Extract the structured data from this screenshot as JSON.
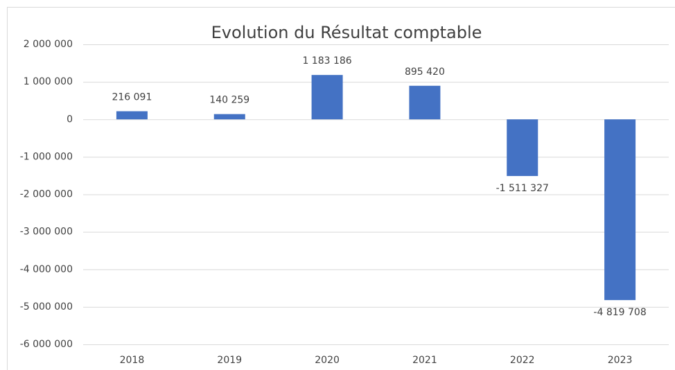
{
  "chart_data": {
    "type": "bar",
    "title": "Evolution du Résultat comptable",
    "categories": [
      "2018",
      "2019",
      "2020",
      "2021",
      "2022",
      "2023"
    ],
    "values": [
      216091,
      140259,
      1183186,
      895420,
      -1511327,
      -4819708
    ],
    "value_labels": [
      "216 091",
      "140 259",
      "1 183 186",
      "895 420",
      "-1 511 327",
      "-4 819 708"
    ],
    "color": "#4472c4",
    "ylim": [
      -6000000,
      2000000
    ],
    "yticks": [
      {
        "value": -6000000,
        "label": "-6 000 000"
      },
      {
        "value": -5000000,
        "label": "-5 000 000"
      },
      {
        "value": -4000000,
        "label": "-4 000 000"
      },
      {
        "value": -3000000,
        "label": "-3 000 000"
      },
      {
        "value": -2000000,
        "label": "-2 000 000"
      },
      {
        "value": -1000000,
        "label": "-1 000 000"
      },
      0,
      {
        "value": 1000000,
        "label": "1 000 000"
      },
      {
        "value": 2000000,
        "label": "2 000 000"
      }
    ],
    "grid": true
  }
}
